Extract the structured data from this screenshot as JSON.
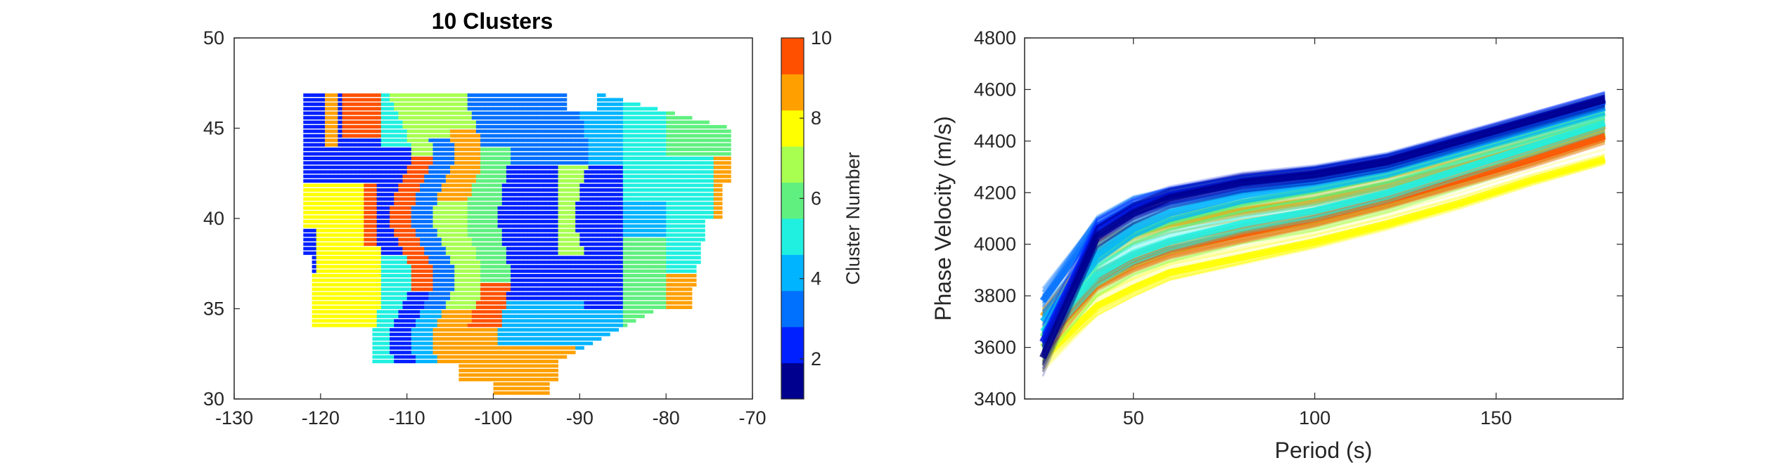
{
  "chart_data": [
    {
      "type": "heatmap",
      "title": "10 Clusters",
      "xlim": [
        -130,
        -70
      ],
      "ylim": [
        30,
        50
      ],
      "xticks": [
        "-130",
        "-120",
        "-110",
        "-100",
        "-90",
        "-80",
        "-70"
      ],
      "yticks": [
        "30",
        "35",
        "40",
        "45",
        "50"
      ],
      "colorbar": {
        "label": "Cluster Number",
        "range": [
          1,
          10
        ],
        "ticks": [
          "2",
          "4",
          "6",
          "8",
          "10"
        ],
        "colors": [
          "#00008f",
          "#0020ff",
          "#0070ff",
          "#00b4ff",
          "#20f0e0",
          "#60f080",
          "#a8ff50",
          "#ffff00",
          "#ffa000",
          "#ff5000"
        ]
      },
      "description_regions": [
        {
          "cluster": 8,
          "lon": [
            -121,
            -113
          ],
          "lat": [
            34,
            42
          ]
        },
        {
          "cluster": 2,
          "lon": [
            -98,
            -88
          ],
          "lat": [
            35,
            47
          ]
        },
        {
          "cluster": 10,
          "lon": [
            -112,
            -108
          ],
          "lat": [
            36,
            46
          ]
        },
        {
          "cluster": 9,
          "lon": [
            -106,
            -102
          ],
          "lat": [
            33,
            45
          ]
        },
        {
          "cluster": 6,
          "lon": [
            -88,
            -76
          ],
          "lat": [
            35,
            40
          ]
        },
        {
          "cluster": 4,
          "lon": [
            -86,
            -73
          ],
          "lat": [
            40,
            45
          ]
        }
      ]
    },
    {
      "type": "line",
      "xlabel": "Period (s)",
      "ylabel": "Phase Velocity (m/s)",
      "xlim": [
        20,
        185
      ],
      "ylim": [
        3400,
        4800
      ],
      "xticks": [
        "50",
        "100",
        "150"
      ],
      "yticks": [
        "3400",
        "3600",
        "3800",
        "4000",
        "4200",
        "4400",
        "4600",
        "4800"
      ],
      "x": [
        25,
        40,
        50,
        60,
        80,
        100,
        120,
        140,
        160,
        180
      ],
      "series": [
        {
          "cluster": 1,
          "color": "#00008f",
          "values": [
            3560,
            4030,
            4120,
            4180,
            4240,
            4270,
            4320,
            4400,
            4480,
            4560
          ]
        },
        {
          "cluster": 2,
          "color": "#0020ff",
          "values": [
            3620,
            4060,
            4140,
            4190,
            4245,
            4275,
            4325,
            4405,
            4485,
            4565
          ]
        },
        {
          "cluster": 3,
          "color": "#0070ff",
          "values": [
            3780,
            4070,
            4150,
            4185,
            4235,
            4270,
            4320,
            4395,
            4475,
            4555
          ]
        },
        {
          "cluster": 4,
          "color": "#00b4ff",
          "values": [
            3700,
            3960,
            4060,
            4120,
            4190,
            4235,
            4290,
            4370,
            4450,
            4530
          ]
        },
        {
          "cluster": 5,
          "color": "#20f0e0",
          "values": [
            3660,
            3880,
            3960,
            4010,
            4080,
            4130,
            4200,
            4290,
            4380,
            4470
          ]
        },
        {
          "cluster": 6,
          "color": "#60f080",
          "values": [
            3640,
            3950,
            4040,
            4090,
            4160,
            4210,
            4270,
            4350,
            4430,
            4510
          ]
        },
        {
          "cluster": 7,
          "color": "#a8ff50",
          "values": [
            3600,
            3840,
            3920,
            3970,
            4040,
            4090,
            4160,
            4250,
            4340,
            4430
          ]
        },
        {
          "cluster": 8,
          "color": "#ffff00",
          "values": [
            3560,
            3760,
            3830,
            3890,
            3950,
            4010,
            4080,
            4160,
            4250,
            4330
          ]
        },
        {
          "cluster": 9,
          "color": "#ffa000",
          "values": [
            3720,
            3970,
            4040,
            4080,
            4130,
            4170,
            4230,
            4300,
            4380,
            4460
          ]
        },
        {
          "cluster": 10,
          "color": "#ff5000",
          "values": [
            3620,
            3860,
            3930,
            3980,
            4040,
            4100,
            4170,
            4250,
            4330,
            4420
          ]
        }
      ]
    }
  ]
}
